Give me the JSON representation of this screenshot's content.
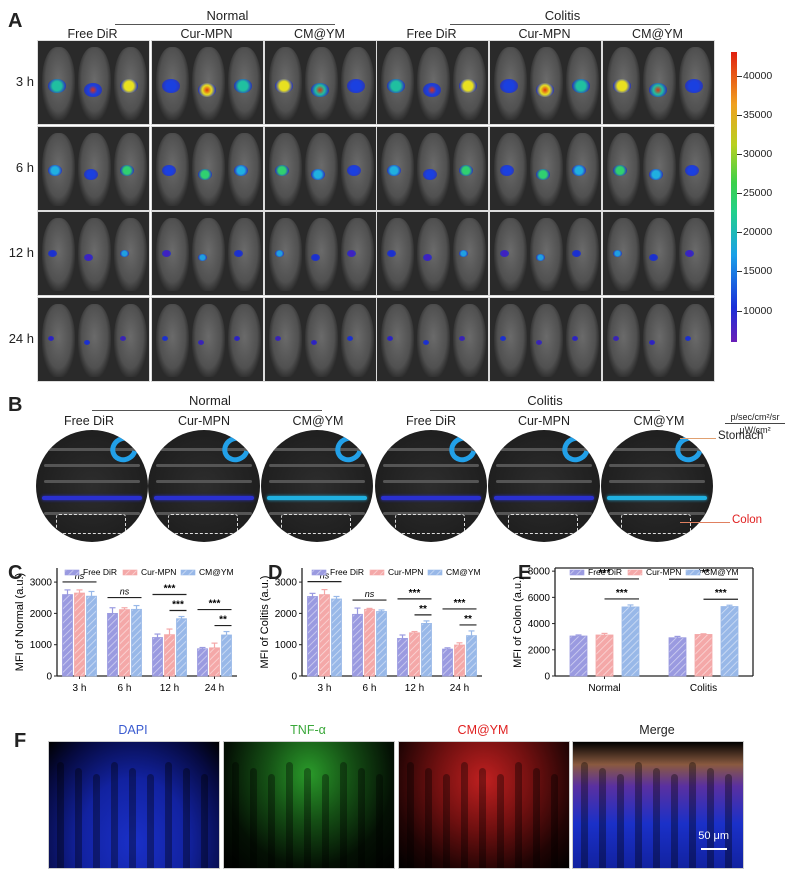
{
  "panels": {
    "A": {
      "label": "A",
      "groups": [
        {
          "name": "Normal"
        },
        {
          "name": "Colitis"
        }
      ],
      "columns": [
        "Free DiR",
        "Cur-MPN",
        "CM@YM",
        "Free DiR",
        "Cur-MPN",
        "CM@YM"
      ],
      "rows": [
        "3 h",
        "6 h",
        "12 h",
        "24 h"
      ],
      "colorbar": {
        "ticks": [
          "40000",
          "35000",
          "30000",
          "25000",
          "20000",
          "15000",
          "10000"
        ],
        "unit_top": "p/sec/cm²/sr",
        "unit_bottom": "μW/cm²"
      }
    },
    "B": {
      "label": "B",
      "groups": [
        {
          "name": "Normal"
        },
        {
          "name": "Colitis"
        }
      ],
      "columns": [
        "Free DiR",
        "Cur-MPN",
        "CM@YM",
        "Free DiR",
        "Cur-MPN",
        "CM@YM"
      ],
      "annotations": {
        "stomach": "Stomach",
        "colon": "Colon"
      }
    },
    "C": {
      "label": "C"
    },
    "D": {
      "label": "D"
    },
    "E": {
      "label": "E"
    },
    "F": {
      "label": "F",
      "channels": [
        {
          "name": "DAPI",
          "color": "#3a5bd0"
        },
        {
          "name": "TNF-α",
          "color": "#3aa83a"
        },
        {
          "name": "CM@YM",
          "color": "#e02020"
        },
        {
          "name": "Merge",
          "color": "#222222"
        }
      ],
      "scalebar": "50 μm"
    }
  },
  "legend": [
    "Free DiR",
    "Cur-MPN",
    "CM@YM"
  ],
  "colors": {
    "free_dir": "#9a9ae0",
    "cur_mpn": "#f4a8a8",
    "cm_ym": "#98b8e8"
  },
  "chart_data": [
    {
      "id": "C",
      "type": "bar",
      "title": "",
      "xlabel": "",
      "ylabel": "MFI of Normal (a.u.)",
      "categories": [
        "3 h",
        "6 h",
        "12 h",
        "24 h"
      ],
      "ylim": [
        0,
        3000
      ],
      "yticks": [
        "0",
        "1000",
        "2000",
        "3000"
      ],
      "series": [
        {
          "name": "Free DiR",
          "values": [
            2600,
            2000,
            1230,
            870
          ],
          "errors": [
            150,
            180,
            110,
            40
          ]
        },
        {
          "name": "Cur-MPN",
          "values": [
            2650,
            2120,
            1320,
            900
          ],
          "errors": [
            100,
            60,
            180,
            150
          ]
        },
        {
          "name": "CM@YM",
          "values": [
            2550,
            2130,
            1830,
            1310
          ],
          "errors": [
            150,
            120,
            70,
            110
          ]
        }
      ],
      "significance": [
        {
          "category": "3 h",
          "label": "ns"
        },
        {
          "category": "6 h",
          "label": "ns"
        },
        {
          "category": "12 h",
          "label": "***"
        },
        {
          "category": "12 h",
          "label": "***"
        },
        {
          "category": "24 h",
          "label": "***"
        },
        {
          "category": "24 h",
          "label": "**"
        }
      ],
      "legend_position": "top"
    },
    {
      "id": "D",
      "type": "bar",
      "title": "",
      "xlabel": "",
      "ylabel": "MFI of Colitis (a.u.)",
      "categories": [
        "3 h",
        "6 h",
        "12 h",
        "24 h"
      ],
      "ylim": [
        0,
        3000
      ],
      "yticks": [
        "0",
        "1000",
        "2000",
        "3000"
      ],
      "series": [
        {
          "name": "Free DiR",
          "values": [
            2540,
            1970,
            1200,
            860
          ],
          "errors": [
            100,
            200,
            110,
            40
          ]
        },
        {
          "name": "Cur-MPN",
          "values": [
            2600,
            2130,
            1380,
            990
          ],
          "errors": [
            160,
            30,
            40,
            70
          ]
        },
        {
          "name": "CM@YM",
          "values": [
            2460,
            2060,
            1680,
            1290
          ],
          "errors": [
            80,
            50,
            80,
            150
          ]
        }
      ],
      "significance": [
        {
          "category": "3 h",
          "label": "ns"
        },
        {
          "category": "6 h",
          "label": "ns"
        },
        {
          "category": "12 h",
          "label": "***"
        },
        {
          "category": "12 h",
          "label": "**"
        },
        {
          "category": "24 h",
          "label": "***"
        },
        {
          "category": "24 h",
          "label": "**"
        }
      ],
      "legend_position": "top"
    },
    {
      "id": "E",
      "type": "bar",
      "title": "",
      "xlabel": "",
      "ylabel": "MFI of Colon (a.u.)",
      "categories": [
        "Normal",
        "Colitis"
      ],
      "ylim": [
        0,
        8000
      ],
      "yticks": [
        "0",
        "2000",
        "4000",
        "6000",
        "8000"
      ],
      "series": [
        {
          "name": "Free DiR",
          "values": [
            3050,
            2920
          ],
          "errors": [
            80,
            100
          ]
        },
        {
          "name": "Cur-MPN",
          "values": [
            3130,
            3170
          ],
          "errors": [
            120,
            50
          ]
        },
        {
          "name": "CM@YM",
          "values": [
            5270,
            5300
          ],
          "errors": [
            150,
            100
          ]
        }
      ],
      "significance": [
        {
          "category": "Normal",
          "label": "***"
        },
        {
          "category": "Normal",
          "label": "***"
        },
        {
          "category": "Colitis",
          "label": "***"
        },
        {
          "category": "Colitis",
          "label": "***"
        }
      ],
      "legend_position": "top"
    }
  ]
}
